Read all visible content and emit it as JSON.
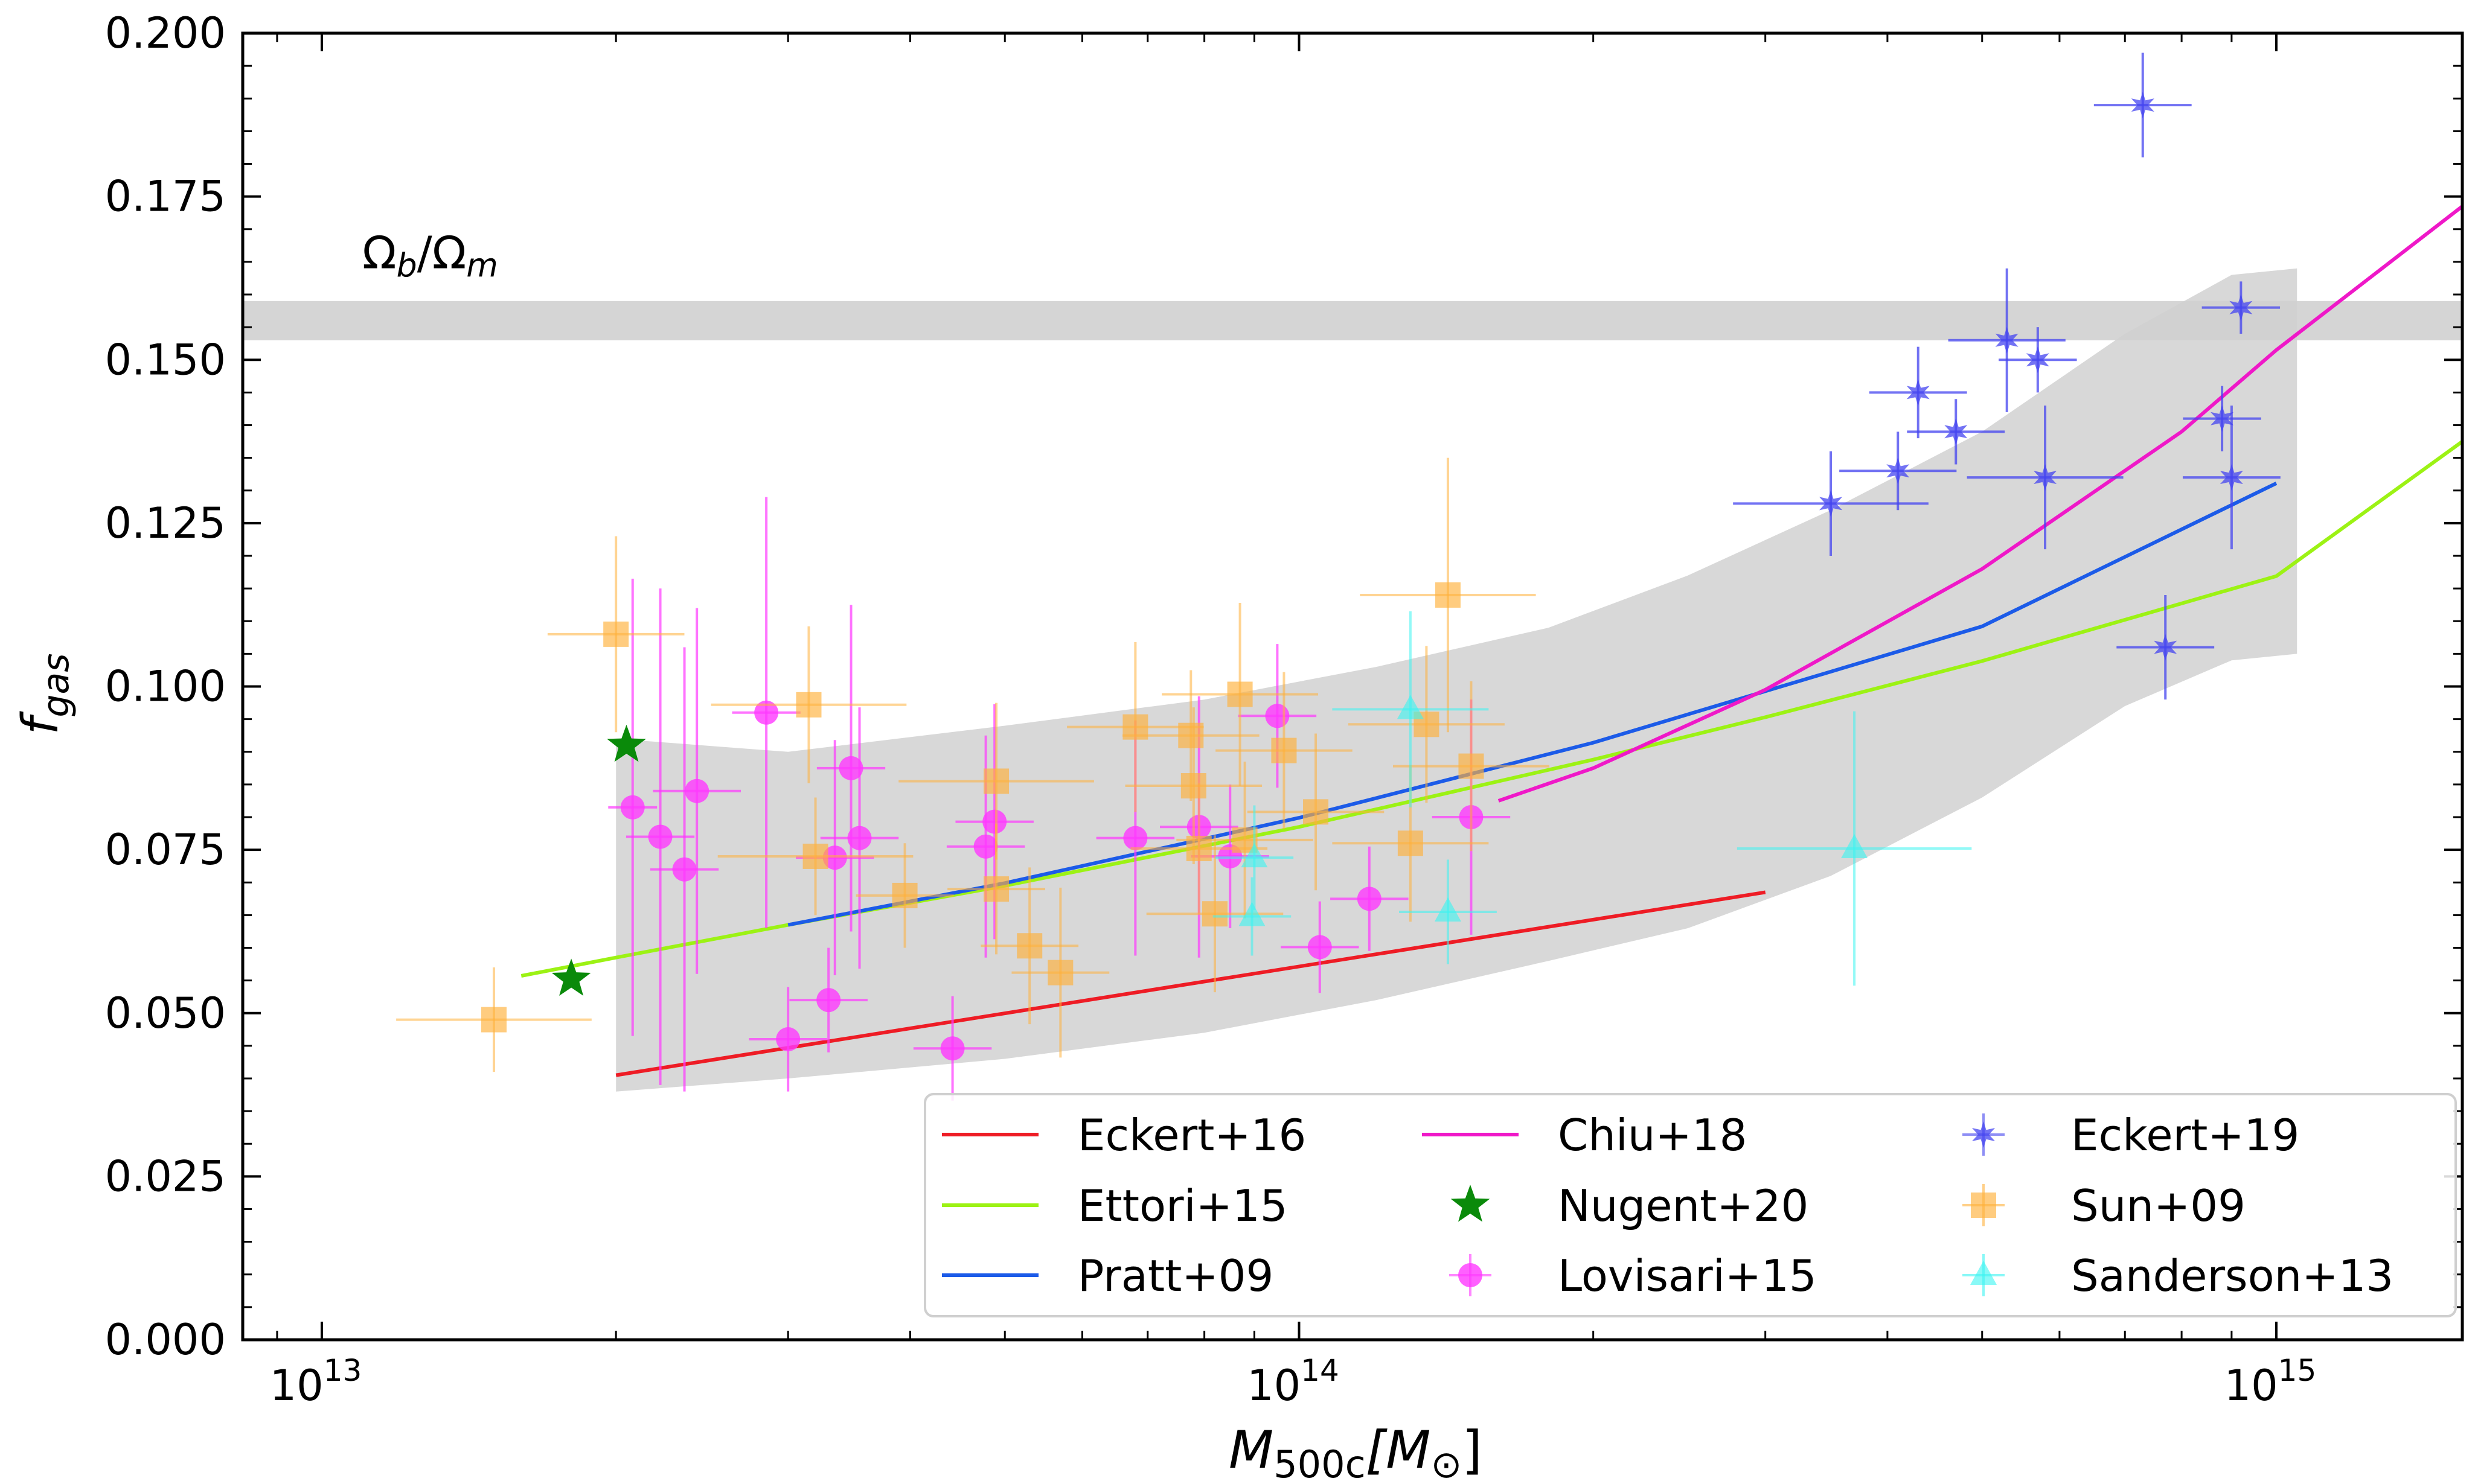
{
  "chart_data": {
    "type": "scatter",
    "xscale": "log",
    "xlim": [
      8300000000000.0,
      1550000000000000.0
    ],
    "ylim": [
      0.0,
      0.2
    ],
    "xlabel_main": "M",
    "xlabel_sub": "500c",
    "xlabel_unit_open": "[M",
    "xlabel_unit_sub": "⊙",
    "xlabel_unit_close": "]",
    "ylabel_main": "f",
    "ylabel_sub": "gas",
    "x_ticks": [
      {
        "value": 10000000000000.0,
        "base": "10",
        "exp": "13"
      },
      {
        "value": 100000000000000.0,
        "base": "10",
        "exp": "14"
      },
      {
        "value": 1000000000000000.0,
        "base": "10",
        "exp": "15"
      }
    ],
    "y_ticks": [
      {
        "value": 0.0,
        "label": "0.000"
      },
      {
        "value": 0.025,
        "label": "0.025"
      },
      {
        "value": 0.05,
        "label": "0.050"
      },
      {
        "value": 0.075,
        "label": "0.075"
      },
      {
        "value": 0.1,
        "label": "0.100"
      },
      {
        "value": 0.125,
        "label": "0.125"
      },
      {
        "value": 0.15,
        "label": "0.150"
      },
      {
        "value": 0.175,
        "label": "0.175"
      },
      {
        "value": 0.2,
        "label": "0.200"
      }
    ],
    "baryon_band": {
      "label_main": "Ω",
      "label_sub1": "b",
      "label_slash": "/Ω",
      "label_sub2": "m",
      "ymin": 0.153,
      "ymax": 0.159,
      "label_x": 11000000000000.0,
      "label_y": 0.164
    },
    "shaded_region": {
      "upper": [
        [
          20000000000000.0,
          0.092
        ],
        [
          30000000000000.0,
          0.09
        ],
        [
          50000000000000.0,
          0.094
        ],
        [
          80000000000000.0,
          0.098
        ],
        [
          120000000000000.0,
          0.103
        ],
        [
          180000000000000.0,
          0.109
        ],
        [
          250000000000000.0,
          0.117
        ],
        [
          350000000000000.0,
          0.127
        ],
        [
          500000000000000.0,
          0.139
        ],
        [
          700000000000000.0,
          0.154
        ],
        [
          900000000000000.0,
          0.163
        ],
        [
          1050000000000000.0,
          0.164
        ]
      ],
      "lower": [
        [
          20000000000000.0,
          0.038
        ],
        [
          30000000000000.0,
          0.04
        ],
        [
          50000000000000.0,
          0.043
        ],
        [
          80000000000000.0,
          0.047
        ],
        [
          120000000000000.0,
          0.052
        ],
        [
          180000000000000.0,
          0.058
        ],
        [
          250000000000000.0,
          0.063
        ],
        [
          350000000000000.0,
          0.071
        ],
        [
          500000000000000.0,
          0.083
        ],
        [
          700000000000000.0,
          0.097
        ],
        [
          900000000000000.0,
          0.104
        ],
        [
          1050000000000000.0,
          0.105
        ]
      ]
    },
    "lines": [
      {
        "name": "Eckert+16",
        "color": "#ee1c25",
        "x": [
          20000000000000.0,
          300000000000000.0
        ],
        "y": [
          0.0405,
          0.0685
        ]
      },
      {
        "name": "Ettori+15",
        "color": "#9cf214",
        "x": [
          16000000000000.0,
          20000000000000.0,
          30000000000000.0,
          50000000000000.0,
          100000000000000.0,
          200000000000000.0,
          300000000000000.0,
          500000000000000.0,
          1000000000000000.0,
          1550000000000000.0
        ],
        "y": [
          0.0557,
          0.0585,
          0.0635,
          0.0695,
          0.0785,
          0.0888,
          0.0953,
          0.1039,
          0.1169,
          0.1375
        ]
      },
      {
        "name": "Pratt+09",
        "color": "#1c5be8",
        "x": [
          30000000000000.0,
          50000000000000.0,
          100000000000000.0,
          200000000000000.0,
          500000000000000.0,
          1000000000000000.0
        ],
        "y": [
          0.0635,
          0.0699,
          0.0799,
          0.0914,
          0.1092,
          0.1311
        ]
      },
      {
        "name": "Chiu+18",
        "color": "#ef18c8",
        "x": [
          160000000000000.0,
          200000000000000.0,
          300000000000000.0,
          500000000000000.0,
          800000000000000.0,
          1000000000000000.0,
          1550000000000000.0
        ],
        "y": [
          0.0825,
          0.0875,
          0.0995,
          0.118,
          0.139,
          0.1515,
          0.1735
        ]
      }
    ],
    "series": [
      {
        "name": "Lovisari+15",
        "color": "#ff38ff",
        "marker": "circle",
        "points": [
          [
            20800000000000.0,
            0.0815,
            0.0025,
            0.035
          ],
          [
            22200000000000.0,
            0.077,
            0.0035,
            0.038
          ],
          [
            23500000000000.0,
            0.072,
            0.0035,
            0.034
          ],
          [
            24200000000000.0,
            0.084,
            0.0045,
            0.028
          ],
          [
            28500000000000.0,
            0.096,
            0.0035,
            0.033
          ],
          [
            30000000000000.0,
            0.046,
            0.004,
            0.008
          ],
          [
            33000000000000.0,
            0.052,
            0.004,
            0.008
          ],
          [
            33500000000000.0,
            0.0738,
            0.004,
            0.018
          ],
          [
            34800000000000.0,
            0.0875,
            0.0035,
            0.025
          ],
          [
            35500000000000.0,
            0.0768,
            0.004,
            0.02
          ],
          [
            44200000000000.0,
            0.0446,
            0.004,
            0.008
          ],
          [
            47800000000000.0,
            0.0755,
            0.004,
            0.017
          ],
          [
            48800000000000.0,
            0.0793,
            0.004,
            0.018
          ],
          [
            68000000000000.0,
            0.0768,
            0.004,
            0.018
          ],
          [
            79000000000000.0,
            0.0785,
            0.004,
            0.02
          ],
          [
            85000000000000.0,
            0.074,
            0.004,
            0.011
          ],
          [
            95000000000000.0,
            0.0955,
            0.004,
            0.011
          ],
          [
            105000000000000.0,
            0.0601,
            0.004,
            0.007
          ],
          [
            118000000000000.0,
            0.0675,
            0.004,
            0.008
          ],
          [
            150000000000000.0,
            0.08,
            0.004,
            0.018
          ]
        ]
      },
      {
        "name": "Sun+09",
        "color": "#ffb13b",
        "marker": "square",
        "points": [
          [
            15000000000000.0,
            0.049,
            0.01,
            0.008
          ],
          [
            20000000000000.0,
            0.108,
            0.007,
            0.015
          ],
          [
            31500000000000.0,
            0.0972,
            0.01,
            0.012
          ],
          [
            32000000000000.0,
            0.074,
            0.01,
            0.009
          ],
          [
            39500000000000.0,
            0.068,
            0.005,
            0.008
          ],
          [
            49000000000000.0,
            0.0855,
            0.01,
            0.012
          ],
          [
            49000000000000.0,
            0.069,
            0.005,
            0.01
          ],
          [
            53000000000000.0,
            0.0603,
            0.005,
            0.012
          ],
          [
            57000000000000.0,
            0.0562,
            0.005,
            0.013
          ],
          [
            68000000000000.0,
            0.0938,
            0.007,
            0.013
          ],
          [
            77500000000000.0,
            0.0925,
            0.007,
            0.01
          ],
          [
            78000000000000.0,
            0.0848,
            0.007,
            0.012
          ],
          [
            79000000000000.0,
            0.0752,
            0.007,
            0.01
          ],
          [
            82000000000000.0,
            0.0652,
            0.007,
            0.012
          ],
          [
            87000000000000.0,
            0.0988,
            0.008,
            0.014
          ],
          [
            88000000000000.0,
            0.0765,
            0.007,
            0.012
          ],
          [
            96500000000000.0,
            0.0902,
            0.007,
            0.012
          ],
          [
            104000000000000.0,
            0.0808,
            0.007,
            0.012
          ],
          [
            130000000000000.0,
            0.076,
            0.008,
            0.012
          ],
          [
            135000000000000.0,
            0.0942,
            0.008,
            0.012
          ],
          [
            142000000000000.0,
            0.114,
            0.009,
            0.021
          ],
          [
            150000000000000.0,
            0.0878,
            0.008,
            0.013
          ]
        ]
      },
      {
        "name": "Sanderson+13",
        "color": "#3bf5f2",
        "marker": "triangle",
        "points": [
          [
            89500000000000.0,
            0.0648,
            0.004,
            0.006
          ],
          [
            90000000000000.0,
            0.0738,
            0.004,
            0.008
          ],
          [
            130000000000000.0,
            0.0965,
            0.008,
            0.015
          ],
          [
            142000000000000.0,
            0.0655,
            0.005,
            0.008
          ],
          [
            370000000000000.0,
            0.0752,
            0.012,
            0.021
          ]
        ]
      },
      {
        "name": "Eckert+19",
        "color": "#4444f0",
        "marker": "star6",
        "points": [
          [
            350000000000000.0,
            0.128,
            0.01,
            0.008
          ],
          [
            410000000000000.0,
            0.133,
            0.006,
            0.006
          ],
          [
            430000000000000.0,
            0.145,
            0.005,
            0.007
          ],
          [
            470000000000000.0,
            0.139,
            0.005,
            0.005
          ],
          [
            530000000000000.0,
            0.153,
            0.006,
            0.011
          ],
          [
            570000000000000.0,
            0.15,
            0.004,
            0.005
          ],
          [
            580000000000000.0,
            0.132,
            0.008,
            0.011
          ],
          [
            730000000000000.0,
            0.189,
            0.005,
            0.008
          ],
          [
            770000000000000.0,
            0.106,
            0.005,
            0.008
          ],
          [
            880000000000000.0,
            0.141,
            0.004,
            0.005
          ],
          [
            900000000000000.0,
            0.132,
            0.005,
            0.011
          ],
          [
            920000000000000.0,
            0.158,
            0.004,
            0.004
          ]
        ]
      },
      {
        "name": "Nugent+20",
        "color": "#0a8a0a",
        "marker": "star5",
        "points": [
          [
            18000000000000.0,
            0.0552,
            0,
            0
          ],
          [
            20500000000000.0,
            0.091,
            0,
            0
          ]
        ]
      }
    ],
    "legend": {
      "placement": "lower-right",
      "columns": [
        [
          {
            "label": "Eckert+16",
            "kind": "line",
            "color": "#ee1c25"
          },
          {
            "label": "Ettori+15",
            "kind": "line",
            "color": "#9cf214"
          },
          {
            "label": "Pratt+09",
            "kind": "line",
            "color": "#1c5be8"
          }
        ],
        [
          {
            "label": "Chiu+18",
            "kind": "line",
            "color": "#ef18c8"
          },
          {
            "label": "Nugent+20",
            "kind": "star5",
            "color": "#0a8a0a"
          },
          {
            "label": "Lovisari+15",
            "kind": "circle",
            "color": "#ff38ff"
          }
        ],
        [
          {
            "label": "Eckert+19",
            "kind": "star6",
            "color": "#4444f0"
          },
          {
            "label": "Sun+09",
            "kind": "square",
            "color": "#ffb13b"
          },
          {
            "label": "Sanderson+13",
            "kind": "triangle",
            "color": "#3bf5f2"
          }
        ]
      ]
    }
  }
}
